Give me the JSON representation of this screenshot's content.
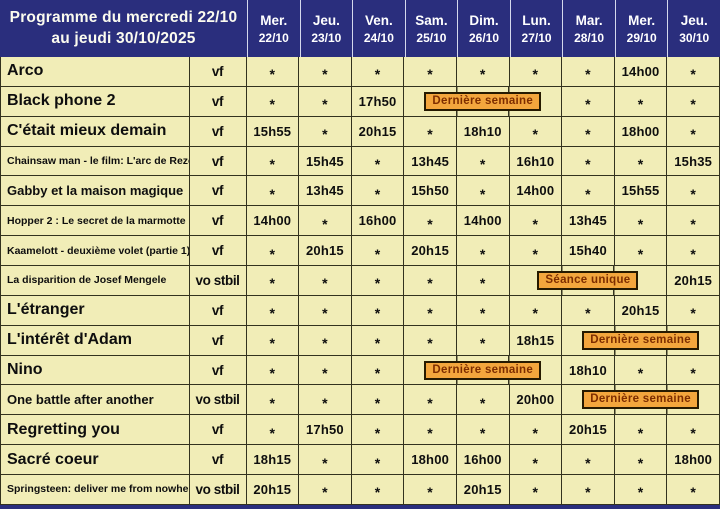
{
  "header": {
    "title_line1": "Programme du mercredi 22/10",
    "title_line2": "au jeudi 30/10/2025",
    "days": [
      {
        "name": "Mer.",
        "date": "22/10"
      },
      {
        "name": "Jeu.",
        "date": "23/10"
      },
      {
        "name": "Ven.",
        "date": "24/10"
      },
      {
        "name": "Sam.",
        "date": "25/10"
      },
      {
        "name": "Dim.",
        "date": "26/10"
      },
      {
        "name": "Lun.",
        "date": "27/10"
      },
      {
        "name": "Mar.",
        "date": "28/10"
      },
      {
        "name": "Mer.",
        "date": "29/10"
      },
      {
        "name": "Jeu.",
        "date": "30/10"
      }
    ]
  },
  "rows": [
    {
      "title": "Arco",
      "lang": "vf",
      "cells": [
        "*",
        "*",
        "*",
        "*",
        "*",
        "*",
        "*",
        "14h00",
        "*"
      ]
    },
    {
      "title": "Black phone 2",
      "lang": "vf",
      "cells": [
        "*",
        "*",
        "17h50",
        {
          "type": "badge",
          "text": "Dernière semaine",
          "span": 3
        },
        "*",
        "*",
        "*"
      ]
    },
    {
      "title": "C'était mieux demain",
      "lang": "vf",
      "cells": [
        "15h55",
        "*",
        "20h15",
        "*",
        "18h10",
        "*",
        "*",
        "18h00",
        "*"
      ]
    },
    {
      "title": "Chainsaw man - le film: L'arc de Reze",
      "lang": "vf",
      "cells": [
        "*",
        "15h45",
        "*",
        "13h45",
        "*",
        "16h10",
        "*",
        "*",
        "15h35"
      ]
    },
    {
      "title": "Gabby et la maison magique",
      "lang": "vf",
      "cells": [
        "*",
        "13h45",
        "*",
        "15h50",
        "*",
        "14h00",
        "*",
        "15h55",
        "*"
      ]
    },
    {
      "title": "Hopper 2 : Le secret de la marmotte",
      "lang": "vf",
      "cells": [
        "14h00",
        "*",
        "16h00",
        "*",
        "14h00",
        "*",
        "13h45",
        "*",
        "*"
      ]
    },
    {
      "title": "Kaamelott - deuxième volet (partie 1)",
      "lang": "vf",
      "cells": [
        "*",
        "20h15",
        "*",
        "20h15",
        "*",
        "*",
        "15h40",
        "*",
        "*"
      ]
    },
    {
      "title": "La disparition de Josef Mengele",
      "lang": "vo stbil",
      "cells": [
        "*",
        "*",
        "*",
        "*",
        "*",
        {
          "type": "badge",
          "text": "Séance unique",
          "span": 3
        },
        "20h15"
      ]
    },
    {
      "title": "L'étranger",
      "lang": "vf",
      "cells": [
        "*",
        "*",
        "*",
        "*",
        "*",
        "*",
        "*",
        "20h15",
        "*"
      ]
    },
    {
      "title": "L'intérêt d'Adam",
      "lang": "vf",
      "cells": [
        "*",
        "*",
        "*",
        "*",
        "*",
        "18h15",
        {
          "type": "badge",
          "text": "Dernière semaine",
          "span": 3
        }
      ]
    },
    {
      "title": "Nino",
      "lang": "vf",
      "cells": [
        "*",
        "*",
        "*",
        {
          "type": "badge",
          "text": "Dernière semaine",
          "span": 3
        },
        "18h10",
        "*",
        "*"
      ]
    },
    {
      "title": "One battle after another",
      "lang": "vo stbil",
      "cells": [
        "*",
        "*",
        "*",
        "*",
        "*",
        "20h00",
        {
          "type": "badge",
          "text": "Dernière semaine",
          "span": 3
        }
      ]
    },
    {
      "title": "Regretting you",
      "lang": "vf",
      "cells": [
        "*",
        "17h50",
        "*",
        "*",
        "*",
        "*",
        "20h15",
        "*",
        "*"
      ]
    },
    {
      "title": "Sacré coeur",
      "lang": "vf",
      "cells": [
        "18h15",
        "*",
        "*",
        "18h00",
        "16h00",
        "*",
        "*",
        "*",
        "18h00"
      ]
    },
    {
      "title": "Springsteen: deliver me from nowhere",
      "lang": "vo stbil",
      "cells": [
        "20h15",
        "*",
        "*",
        "*",
        "20h15",
        "*",
        "*",
        "*",
        "*"
      ]
    }
  ],
  "colors": {
    "navy": "#2a2e7d",
    "cell_bg": "#f1edb7",
    "grid": "#33321e",
    "badge_bg": "#f3a63d",
    "badge_text": "#7d2d00",
    "header_text": "#ffffff",
    "title_text": "#fbfbef"
  }
}
